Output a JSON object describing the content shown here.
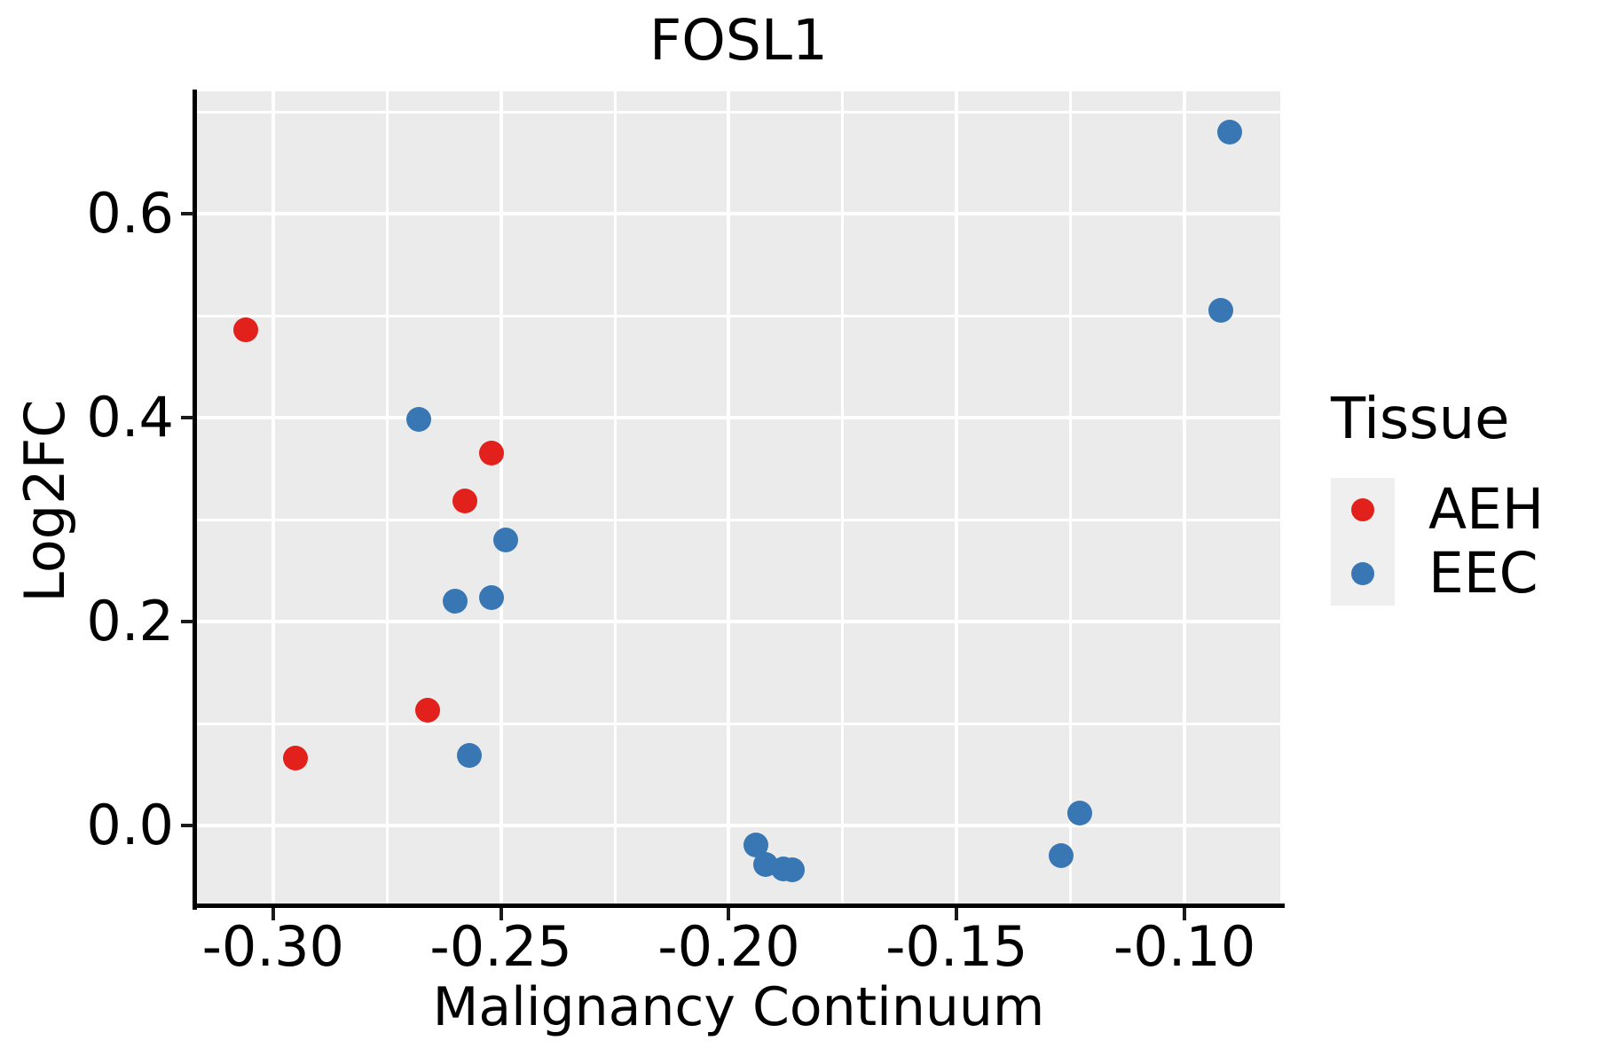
{
  "title": "FOSL1",
  "chart_data": {
    "type": "scatter",
    "title": "FOSL1",
    "xlabel": "Malignancy Continuum",
    "ylabel": "Log2FC",
    "xlim": [
      -0.3167,
      -0.079
    ],
    "ylim": [
      -0.078,
      0.72
    ],
    "grid": true,
    "panel_bg": "#EBEBEB",
    "gridline_color": "#FFFFFF",
    "x_ticks": {
      "values": [
        -0.3,
        -0.25,
        -0.2,
        -0.15,
        -0.1
      ],
      "labels": [
        "-0.30",
        "-0.25",
        "-0.20",
        "-0.15",
        "-0.10"
      ]
    },
    "x_minor_ticks": [
      -0.275,
      -0.225,
      -0.175,
      -0.125
    ],
    "y_ticks": {
      "values": [
        0.0,
        0.2,
        0.4,
        0.6
      ],
      "labels": [
        "0.0",
        "0.2",
        "0.4",
        "0.6"
      ]
    },
    "y_minor_ticks": [
      0.1,
      0.3,
      0.5,
      0.7
    ],
    "legend_position": "right",
    "series": [
      {
        "name": "AEH",
        "color": "#E3211C",
        "points": [
          [
            -0.306,
            0.486
          ],
          [
            -0.295,
            0.066
          ],
          [
            -0.266,
            0.113
          ],
          [
            -0.258,
            0.318
          ],
          [
            -0.252,
            0.365
          ]
        ]
      },
      {
        "name": "EEC",
        "color": "#3877B4",
        "points": [
          [
            -0.268,
            0.398
          ],
          [
            -0.26,
            0.22
          ],
          [
            -0.252,
            0.224
          ],
          [
            -0.249,
            0.28
          ],
          [
            -0.257,
            0.069
          ],
          [
            -0.194,
            -0.019
          ],
          [
            -0.192,
            -0.038
          ],
          [
            -0.188,
            -0.042
          ],
          [
            -0.186,
            -0.043
          ],
          [
            -0.127,
            -0.029
          ],
          [
            -0.123,
            0.012
          ],
          [
            -0.092,
            0.505
          ],
          [
            -0.09,
            0.68
          ]
        ]
      }
    ]
  },
  "legend": {
    "title": "Tissue",
    "items": [
      {
        "label": "AEH",
        "color": "#E3211C"
      },
      {
        "label": "EEC",
        "color": "#3877B4"
      }
    ]
  }
}
